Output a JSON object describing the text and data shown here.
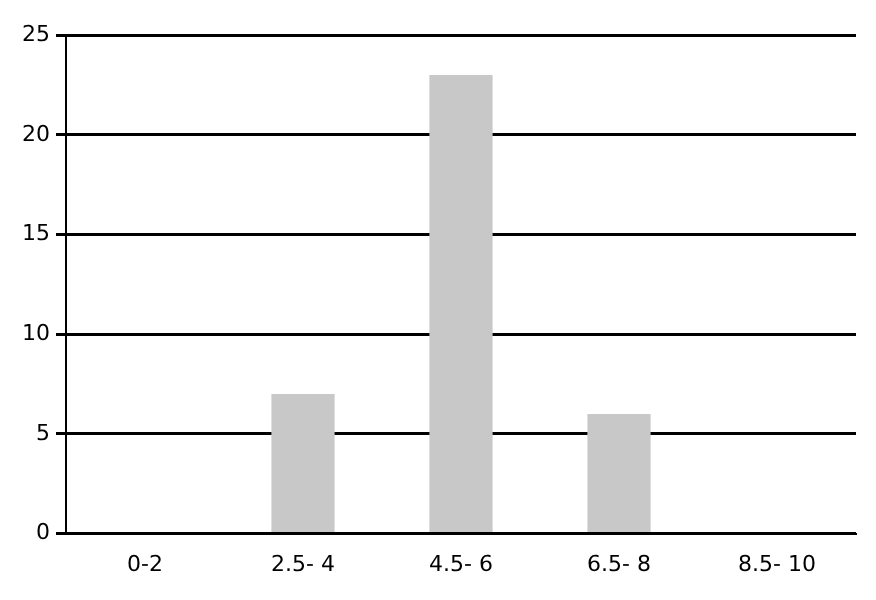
{
  "chart_data": {
    "type": "bar",
    "categories": [
      "0-2",
      "2.5- 4",
      "4.5- 6",
      "6.5- 8",
      "8.5- 10"
    ],
    "values": [
      0,
      7,
      23,
      6,
      0
    ],
    "color": "#c8c8c8",
    "ylim": [
      0,
      25
    ],
    "yticks": [
      0,
      5,
      10,
      15,
      20,
      25
    ],
    "grid": "y",
    "legend": false
  }
}
